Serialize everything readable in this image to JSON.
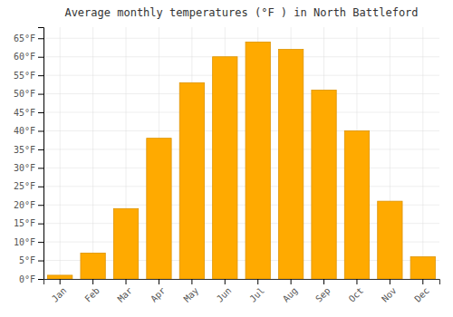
{
  "chart_data": {
    "type": "bar",
    "title": "Average monthly temperatures (°F ) in North Battleford",
    "categories": [
      "Jan",
      "Feb",
      "Mar",
      "Apr",
      "May",
      "Jun",
      "Jul",
      "Aug",
      "Sep",
      "Oct",
      "Nov",
      "Dec"
    ],
    "values": [
      1,
      7,
      19,
      38,
      53,
      60,
      64,
      62,
      51,
      40,
      21,
      6
    ],
    "color": "#FFAA00",
    "ylim": [
      0,
      68
    ],
    "yticks": [
      {
        "value": 0,
        "label": "0°F"
      },
      {
        "value": 5,
        "label": "5°F"
      },
      {
        "value": 10,
        "label": "10°F"
      },
      {
        "value": 15,
        "label": "15°F"
      },
      {
        "value": 20,
        "label": "20°F"
      },
      {
        "value": 25,
        "label": "25°F"
      },
      {
        "value": 30,
        "label": "30°F"
      },
      {
        "value": 35,
        "label": "35°F"
      },
      {
        "value": 40,
        "label": "40°F"
      },
      {
        "value": 45,
        "label": "45°F"
      },
      {
        "value": 50,
        "label": "50°F"
      },
      {
        "value": 55,
        "label": "55°F"
      },
      {
        "value": 60,
        "label": "60°F"
      },
      {
        "value": 65,
        "label": "65°F"
      }
    ],
    "grid": true
  }
}
